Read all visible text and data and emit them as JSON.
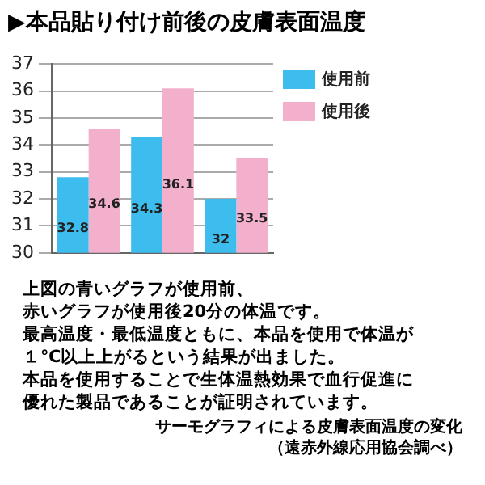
{
  "chart_data": {
    "type": "bar",
    "title": "▶本品貼り付け前後の皮膚表面温度",
    "categories": [
      null,
      null,
      null
    ],
    "series": [
      {
        "name": "使用前",
        "color": "#3dbdee",
        "values": [
          32.8,
          34.3,
          32
        ]
      },
      {
        "name": "使用後",
        "color": "#f2b0cc",
        "values": [
          34.6,
          36.1,
          33.5
        ]
      }
    ],
    "ylim": [
      30,
      37
    ],
    "yticks": [
      30,
      31,
      32,
      33,
      34,
      35,
      36,
      37
    ],
    "grid": "y",
    "legend": "top right",
    "data_labels": true,
    "annotations": [
      "上図の青いグラフが使用前、",
      "赤いグラフが使用後20分の体温です。",
      "最高温度・最低温度ともに、本品を使用で体温が",
      "１℃以上上がるという結果が出ました。",
      "本品を使用することで生体温熱効果で血行促進に",
      "優れた製品であることが証明されています。",
      "サーモグラフィによる皮膚表面温度の変化",
      "（遠赤外線応用協会調べ）"
    ]
  }
}
